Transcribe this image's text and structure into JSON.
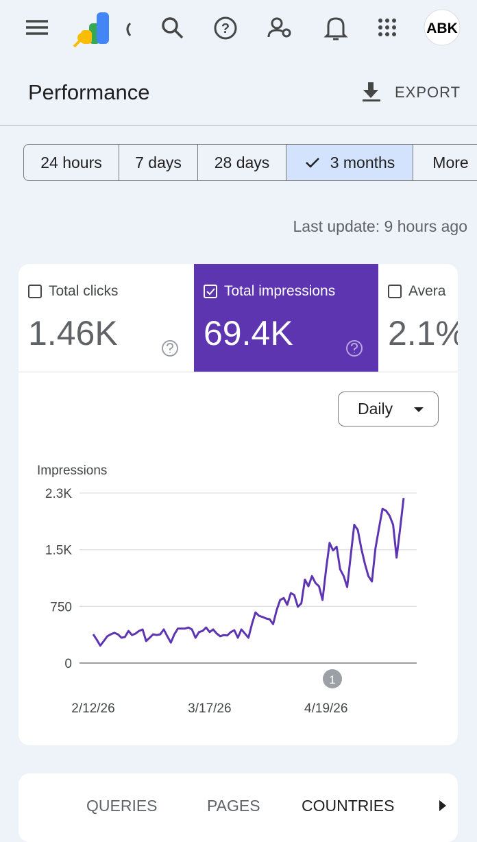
{
  "header": {
    "avatar": "ABK"
  },
  "page": {
    "title": "Performance",
    "export": "EXPORT"
  },
  "date_ranges": {
    "options": [
      "24 hours",
      "7 days",
      "28 days",
      "3 months",
      "More"
    ],
    "selected": 3
  },
  "last_update": "Last update: 9 hours ago",
  "metrics": [
    {
      "label": "Total clicks",
      "value": "1.46K",
      "selected": false
    },
    {
      "label": "Total impressions",
      "value": "69.4K",
      "selected": true
    },
    {
      "label": "Avera",
      "value": "2.1%",
      "selected": false
    }
  ],
  "granularity": "Daily",
  "chart_data": {
    "type": "line",
    "y_label": "Impressions",
    "color": "#5e35b1",
    "categories": [
      "2/12/26",
      null,
      null,
      null,
      null,
      null,
      null,
      null,
      null,
      null,
      null,
      null,
      null,
      null,
      null,
      null,
      null,
      null,
      null,
      null,
      null,
      null,
      null,
      null,
      null,
      null,
      null,
      null,
      null,
      null,
      null,
      null,
      null,
      "3/17/26",
      null,
      null,
      null,
      null,
      null,
      null,
      null,
      null,
      null,
      null,
      null,
      null,
      null,
      null,
      null,
      null,
      null,
      null,
      null,
      null,
      null,
      null,
      null,
      null,
      null,
      null,
      null,
      null,
      null,
      null,
      null,
      null,
      "4/19/26",
      null,
      null,
      null,
      null,
      null,
      null,
      null,
      null,
      null,
      null,
      null,
      null,
      null,
      null,
      null,
      null,
      null,
      null,
      null,
      null,
      null,
      null
    ],
    "values": [
      380,
      310,
      230,
      290,
      355,
      380,
      400,
      380,
      335,
      345,
      425,
      370,
      390,
      425,
      445,
      290,
      335,
      380,
      370,
      380,
      445,
      355,
      270,
      380,
      455,
      455,
      455,
      470,
      445,
      335,
      410,
      425,
      470,
      410,
      445,
      390,
      355,
      370,
      365,
      410,
      435,
      335,
      445,
      390,
      335,
      515,
      670,
      625,
      610,
      590,
      580,
      515,
      700,
      835,
      860,
      770,
      925,
      900,
      745,
      790,
      1105,
      1015,
      1150,
      1060,
      1015,
      835,
      1240,
      1590,
      1490,
      1540,
      1240,
      1150,
      1005,
      1425,
      1830,
      1760,
      1515,
      1315,
      1150,
      1080,
      1515,
      1785,
      2040,
      2015,
      1950,
      1830,
      1395,
      1785,
      2185
    ],
    "ylim": [
      0,
      2250
    ],
    "yticks": [
      0,
      750,
      {
        "value": 1500,
        "label": "1.5K"
      },
      {
        "value": 2250,
        "label": "2.3K"
      }
    ],
    "grid": true,
    "annotation": "1"
  },
  "tabs": {
    "options": [
      "QUERIES",
      "PAGES",
      "COUNTRIES"
    ],
    "selected": 2
  }
}
